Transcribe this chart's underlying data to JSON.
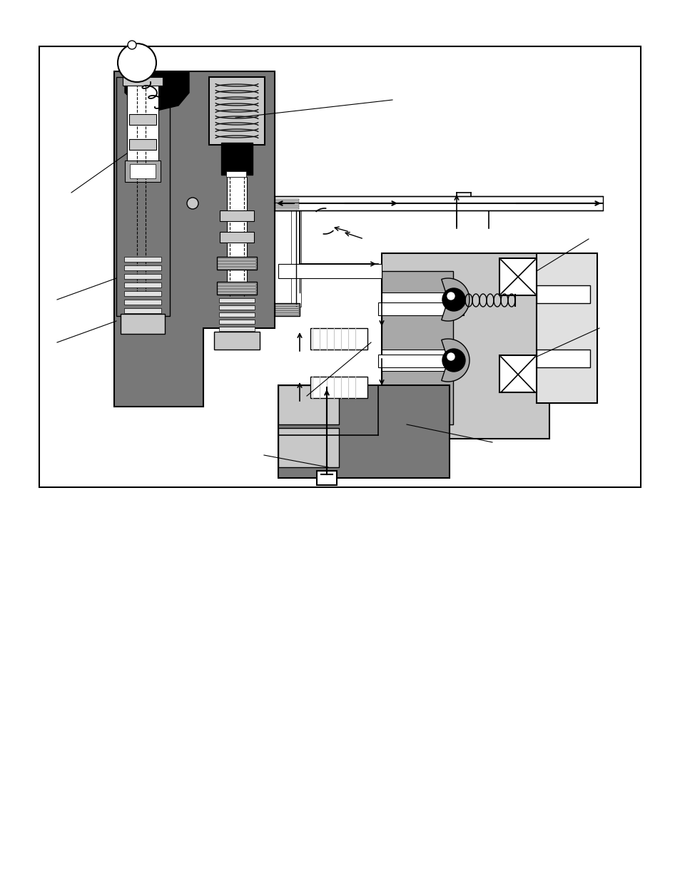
{
  "bg_color": "#ffffff",
  "dark_gray": "#787878",
  "mid_gray": "#a8a8a8",
  "light_gray": "#c8c8c8",
  "very_light_gray": "#e0e0e0",
  "black": "#000000",
  "white": "#ffffff",
  "figure_width": 9.54,
  "figure_height": 12.35,
  "dpi": 100
}
